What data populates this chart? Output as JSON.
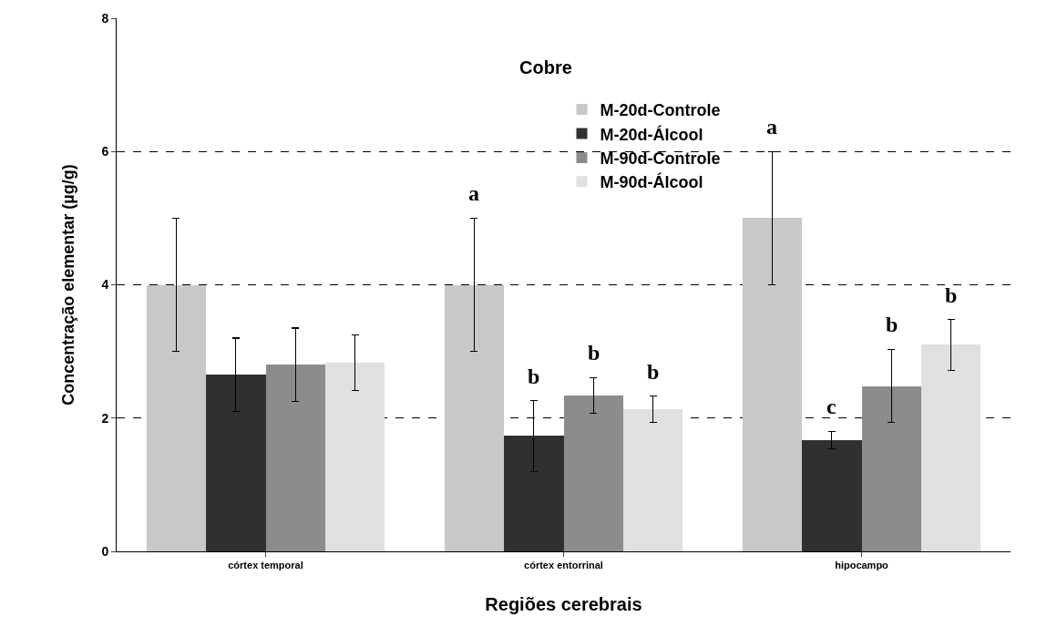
{
  "chart_data": {
    "type": "bar",
    "title": "Cobre",
    "xlabel": "Regiões cerebrais",
    "ylabel": "Concentração elementar (µg/g)",
    "categories": [
      "córtex temporal",
      "córtex entorrinal",
      "hipocampo"
    ],
    "series": [
      {
        "name": "M-20d-Controle",
        "color": "#c8c8c8",
        "values": [
          4.0,
          4.0,
          5.0
        ],
        "errors": [
          1.0,
          1.0,
          1.0
        ]
      },
      {
        "name": "M-20d-Álcool",
        "color": "#303030",
        "values": [
          2.65,
          1.73,
          1.67
        ],
        "errors": [
          0.55,
          0.53,
          0.13
        ]
      },
      {
        "name": "M-90d-Controle",
        "color": "#8c8c8c",
        "values": [
          2.8,
          2.34,
          2.48
        ],
        "errors": [
          0.55,
          0.27,
          0.55
        ]
      },
      {
        "name": "M-90d-Álcool",
        "color": "#e0e0e0",
        "values": [
          2.83,
          2.13,
          3.1
        ],
        "errors": [
          0.42,
          0.2,
          0.38
        ]
      }
    ],
    "annotations": [
      "a",
      "b",
      "b",
      "b",
      "a",
      "c",
      "b",
      "b"
    ],
    "ylim": [
      0,
      8
    ],
    "yticks": [
      0,
      2,
      4,
      6,
      8
    ],
    "grid": "y",
    "legend": "top"
  }
}
